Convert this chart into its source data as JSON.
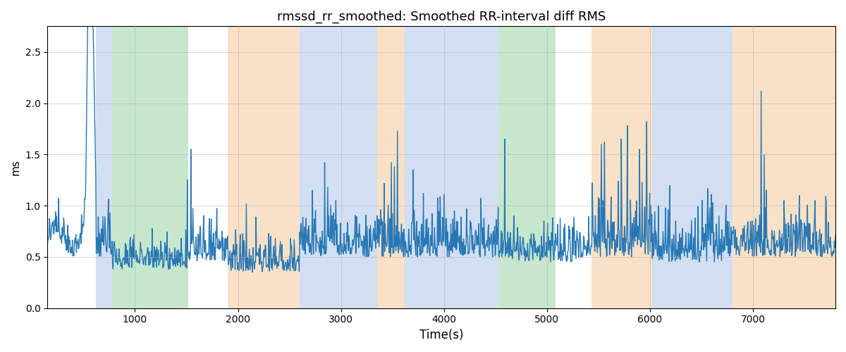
{
  "title": "rmssd_rr_smoothed: Smoothed RR-interval diff RMS",
  "xlabel": "Time(s)",
  "ylabel": "ms",
  "xlim": [
    150,
    7800
  ],
  "ylim": [
    0.0,
    2.75
  ],
  "yticks": [
    0.0,
    0.5,
    1.0,
    1.5,
    2.0,
    2.5
  ],
  "xticks": [
    1000,
    2000,
    3000,
    4000,
    5000,
    6000,
    7000
  ],
  "line_color": "#2878b5",
  "line_width": 1.0,
  "background_color": "#ffffff",
  "grid_color": "#b0b0b0",
  "bands": [
    {
      "xmin": 620,
      "xmax": 780,
      "color": "#aec6e8",
      "alpha": 0.55
    },
    {
      "xmin": 780,
      "xmax": 1520,
      "color": "#98d4a3",
      "alpha": 0.55
    },
    {
      "xmin": 1900,
      "xmax": 2600,
      "color": "#f5c99a",
      "alpha": 0.55
    },
    {
      "xmin": 2600,
      "xmax": 3350,
      "color": "#aec6e8",
      "alpha": 0.55
    },
    {
      "xmin": 3350,
      "xmax": 3620,
      "color": "#f5c99a",
      "alpha": 0.55
    },
    {
      "xmin": 3620,
      "xmax": 4530,
      "color": "#aec6e8",
      "alpha": 0.55
    },
    {
      "xmin": 4530,
      "xmax": 5080,
      "color": "#98d4a3",
      "alpha": 0.55
    },
    {
      "xmin": 5430,
      "xmax": 6020,
      "color": "#f5c99a",
      "alpha": 0.55
    },
    {
      "xmin": 6020,
      "xmax": 6800,
      "color": "#aec6e8",
      "alpha": 0.55
    },
    {
      "xmin": 6800,
      "xmax": 7800,
      "color": "#f5c99a",
      "alpha": 0.55
    }
  ],
  "seed": 12345,
  "n_points": 1550
}
